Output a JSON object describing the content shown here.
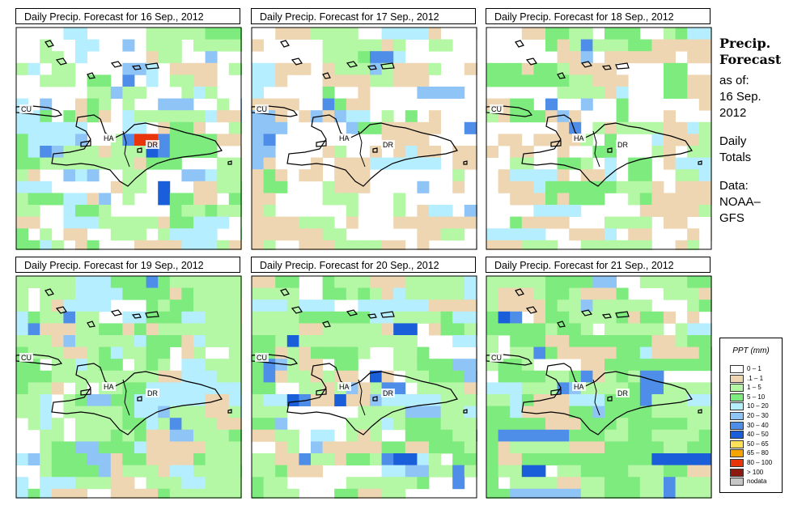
{
  "panels": [
    {
      "title": "Daily Precip. Forecast for  16 Sep., 2012",
      "date": "16 Sep., 2012"
    },
    {
      "title": "Daily Precip. Forecast for  17 Sep., 2012",
      "date": "17 Sep., 2012"
    },
    {
      "title": "Daily Precip. Forecast for  18 Sep., 2012",
      "date": "18 Sep., 2012"
    },
    {
      "title": "Daily Precip. Forecast for  19 Sep., 2012",
      "date": "19 Sep., 2012"
    },
    {
      "title": "Daily Precip. Forecast for  20 Sep., 2012",
      "date": "20 Sep., 2012"
    },
    {
      "title": "Daily Precip. Forecast for  21 Sep., 2012",
      "date": "21 Sep., 2012"
    }
  ],
  "map_labels": {
    "cuba": "CU",
    "haiti": "HA",
    "dominican_republic": "DR"
  },
  "sidebar": {
    "heading_line1": "Precip.",
    "heading_line2": "Forecast",
    "as_of": "as of:",
    "date_line1": "16 Sep.",
    "date_line2": "2012",
    "totals_line1": "Daily",
    "totals_line2": "Totals",
    "data_line1": "Data:",
    "data_line2": "NOAA–",
    "data_line3": "GFS"
  },
  "legend": {
    "title": "PPT (mm)",
    "items": [
      {
        "label": "0 – 1",
        "color": "#ffffff"
      },
      {
        "label": ".1 – 1",
        "color": "#efd6b2"
      },
      {
        "label": "1 – 5",
        "color": "#b4f7a4"
      },
      {
        "label": "5 – 10",
        "color": "#7deb7d"
      },
      {
        "label": "10 – 20",
        "color": "#b4eeff"
      },
      {
        "label": "20 – 30",
        "color": "#8fc4f7"
      },
      {
        "label": "30 – 40",
        "color": "#4e8ee9"
      },
      {
        "label": "40 – 50",
        "color": "#1b5ed9"
      },
      {
        "label": "50 – 65",
        "color": "#ffe25a"
      },
      {
        "label": "65 – 80",
        "color": "#f7a300"
      },
      {
        "label": "80 – 100",
        "color": "#e8350a"
      },
      {
        "label": "> 100",
        "color": "#8c1a10"
      },
      {
        "label": "nodata",
        "color": "#c6c6c6"
      }
    ]
  }
}
